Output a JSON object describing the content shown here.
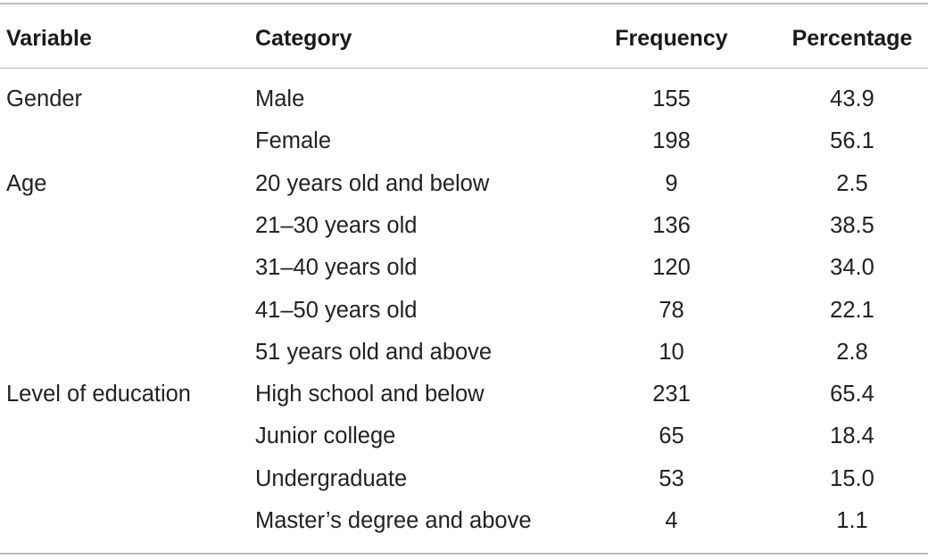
{
  "table": {
    "headers": {
      "variable": "Variable",
      "category": "Category",
      "frequency": "Frequency",
      "percentage": "Percentage"
    },
    "rows": [
      {
        "variable": "Gender",
        "category": "Male",
        "frequency": "155",
        "percentage": "43.9"
      },
      {
        "variable": "",
        "category": "Female",
        "frequency": "198",
        "percentage": "56.1"
      },
      {
        "variable": "Age",
        "category": "20 years old and below",
        "frequency": "9",
        "percentage": "2.5"
      },
      {
        "variable": "",
        "category": "21–30 years old",
        "frequency": "136",
        "percentage": "38.5"
      },
      {
        "variable": "",
        "category": "31–40 years old",
        "frequency": "120",
        "percentage": "34.0"
      },
      {
        "variable": "",
        "category": "41–50 years old",
        "frequency": "78",
        "percentage": "22.1"
      },
      {
        "variable": "",
        "category": "51 years old and above",
        "frequency": "10",
        "percentage": "2.8"
      },
      {
        "variable": "Level of education",
        "category": "High school and below",
        "frequency": "231",
        "percentage": "65.4"
      },
      {
        "variable": "",
        "category": "Junior college",
        "frequency": "65",
        "percentage": "18.4"
      },
      {
        "variable": "",
        "category": "Undergraduate",
        "frequency": "53",
        "percentage": "15.0"
      },
      {
        "variable": "",
        "category": "Master’s degree and above",
        "frequency": "4",
        "percentage": "1.1"
      }
    ]
  }
}
